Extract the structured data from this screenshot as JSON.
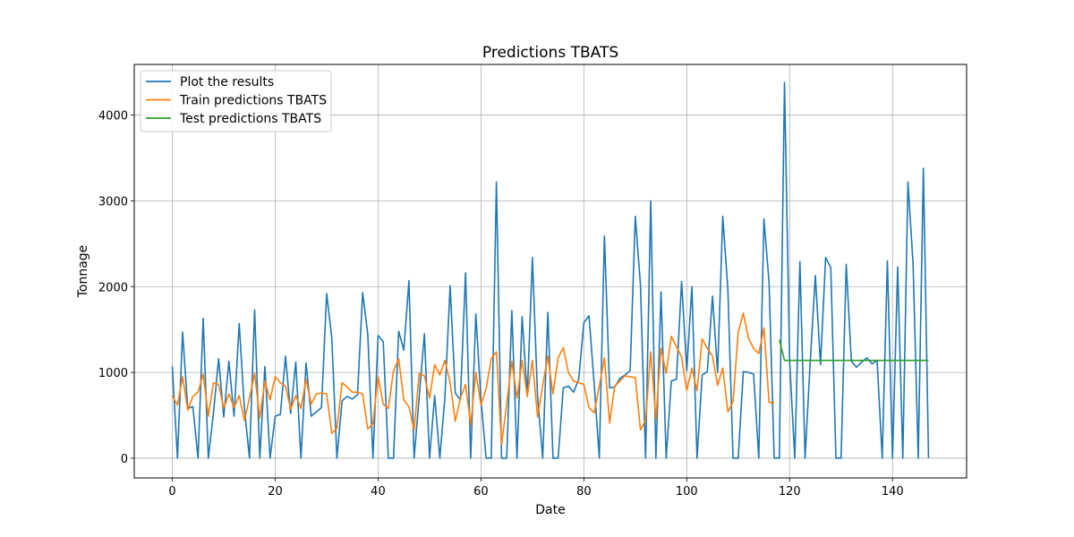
{
  "chart_data": {
    "type": "line",
    "title": "Predictions TBATS",
    "xlabel": "Date",
    "ylabel": "Tonnage",
    "xlim": [
      -7.4,
      154.4
    ],
    "ylim": [
      -230,
      4590
    ],
    "xticks": [
      0,
      20,
      40,
      60,
      80,
      100,
      120,
      140
    ],
    "yticks": [
      0,
      1000,
      2000,
      3000,
      4000
    ],
    "grid": true,
    "legend_position": "top-left",
    "series": [
      {
        "name": "Plot the results",
        "color": "#1f77b4",
        "x_start": 0,
        "values": [
          1070,
          0,
          1470,
          580,
          600,
          0,
          1630,
          0,
          530,
          1160,
          480,
          1130,
          490,
          1570,
          590,
          0,
          1730,
          0,
          1070,
          0,
          490,
          510,
          1190,
          520,
          1120,
          0,
          1110,
          490,
          540,
          590,
          1920,
          1400,
          0,
          670,
          720,
          690,
          740,
          1930,
          1440,
          0,
          1430,
          1360,
          0,
          0,
          1480,
          1260,
          2070,
          0,
          720,
          1450,
          0,
          730,
          0,
          720,
          2010,
          760,
          680,
          2160,
          0,
          1680,
          680,
          0,
          0,
          3220,
          0,
          0,
          1720,
          0,
          1650,
          720,
          2340,
          720,
          0,
          1700,
          0,
          0,
          820,
          840,
          770,
          920,
          1580,
          1660,
          870,
          0,
          2590,
          820,
          830,
          930,
          970,
          1020,
          2820,
          2020,
          0,
          3000,
          0,
          1940,
          0,
          900,
          920,
          2060,
          1020,
          2000,
          0,
          970,
          1010,
          1890,
          1000,
          2820,
          1960,
          0,
          0,
          1010,
          1000,
          980,
          0,
          2790,
          2050,
          0,
          0,
          4380,
          1130,
          0,
          2290,
          0,
          1120,
          2130,
          1090,
          2340,
          2220,
          0,
          0,
          2260,
          1130,
          1060,
          1120,
          1170,
          1100,
          1140,
          0,
          2300,
          0,
          2230,
          0,
          3220,
          2260,
          0,
          3380,
          0
        ]
      },
      {
        "name": "Train predictions TBATS",
        "color": "#ff7f0e",
        "x_start": 0,
        "values": [
          730,
          620,
          950,
          560,
          720,
          770,
          980,
          490,
          880,
          860,
          580,
          750,
          590,
          730,
          440,
          700,
          990,
          470,
          900,
          680,
          950,
          880,
          840,
          570,
          730,
          580,
          920,
          630,
          750,
          760,
          750,
          290,
          350,
          880,
          830,
          770,
          770,
          750,
          340,
          400,
          950,
          630,
          580,
          1020,
          1160,
          680,
          600,
          330,
          990,
          960,
          700,
          1090,
          970,
          1140,
          880,
          430,
          700,
          860,
          390,
          1000,
          620,
          810,
          1160,
          1240,
          160,
          630,
          1130,
          700,
          1140,
          720,
          1140,
          480,
          850,
          1190,
          750,
          1170,
          1290,
          1000,
          900,
          880,
          860,
          590,
          530,
          840,
          1170,
          410,
          840,
          900,
          960,
          950,
          940,
          330,
          440,
          1240,
          460,
          1280,
          990,
          1420,
          1300,
          1180,
          790,
          1050,
          790,
          1390,
          1280,
          1190,
          850,
          1050,
          540,
          660,
          1470,
          1690,
          1400,
          1280,
          1220,
          1520,
          650,
          650
        ]
      },
      {
        "name": "Test predictions TBATS",
        "color": "#2ca02c",
        "x_start": 118,
        "values": [
          1380,
          1140,
          1140,
          1140,
          1140,
          1140,
          1140,
          1140,
          1140,
          1140,
          1140,
          1140,
          1140,
          1140,
          1140,
          1140,
          1140,
          1140,
          1140,
          1140,
          1140,
          1140,
          1140,
          1140,
          1140,
          1140,
          1140,
          1140,
          1140,
          1140
        ]
      }
    ]
  }
}
